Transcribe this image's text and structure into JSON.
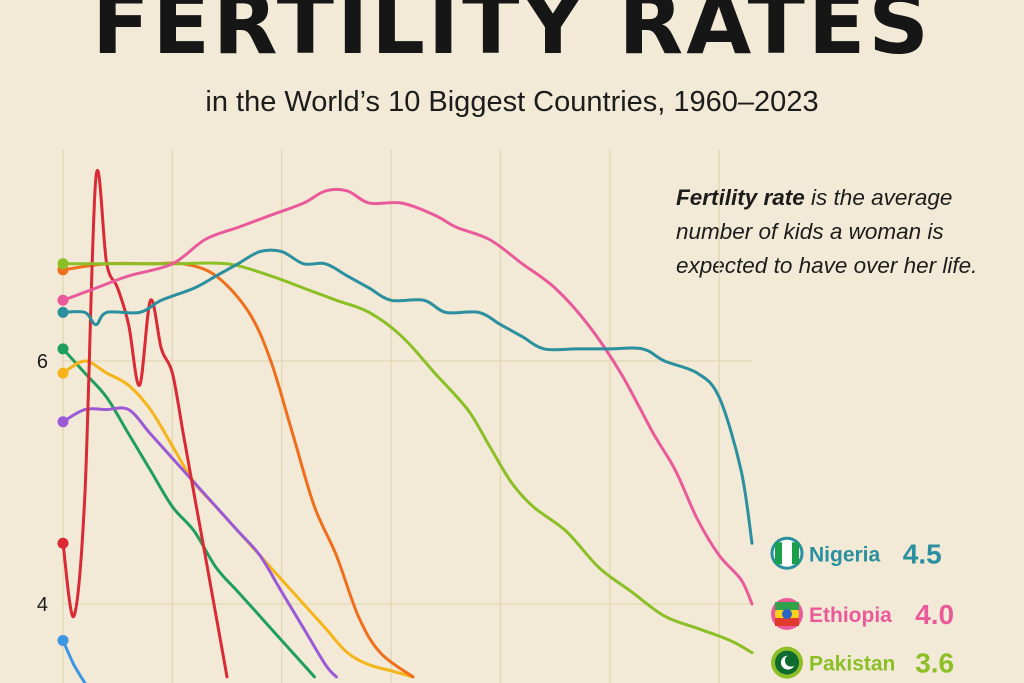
{
  "title": "FERTILITY RATES",
  "subtitle": "in the World’s 10 Biggest Countries, 1960–2023",
  "note": {
    "bold": "Fertility rate",
    "text": " is the average number of kids a woman is expected to have over her life."
  },
  "chart_data": {
    "type": "line",
    "x_range": [
      1960,
      2023
    ],
    "ylim": [
      3.4,
      7.8
    ],
    "y_ticks": [
      {
        "value": 6,
        "label": "6"
      },
      {
        "value": 4,
        "label": "4"
      }
    ],
    "grid": true,
    "series": [
      {
        "color": "#2a8f9e",
        "end_label": "Nigeria",
        "end_value": "4.5",
        "points": [
          [
            1960,
            6.4
          ],
          [
            1962,
            6.4
          ],
          [
            1963,
            6.3
          ],
          [
            1964,
            6.4
          ],
          [
            1967,
            6.4
          ],
          [
            1969,
            6.5
          ],
          [
            1972,
            6.6
          ],
          [
            1974,
            6.7
          ],
          [
            1976,
            6.8
          ],
          [
            1978,
            6.9
          ],
          [
            1980,
            6.9
          ],
          [
            1982,
            6.8
          ],
          [
            1984,
            6.8
          ],
          [
            1986,
            6.7
          ],
          [
            1988,
            6.6
          ],
          [
            1990,
            6.5
          ],
          [
            1993,
            6.5
          ],
          [
            1995,
            6.4
          ],
          [
            1998,
            6.4
          ],
          [
            2000,
            6.3
          ],
          [
            2002,
            6.2
          ],
          [
            2004,
            6.1
          ],
          [
            2007,
            6.1
          ],
          [
            2010,
            6.1
          ],
          [
            2013,
            6.1
          ],
          [
            2015,
            6.0
          ],
          [
            2018,
            5.9
          ],
          [
            2020,
            5.7
          ],
          [
            2022,
            5.1
          ],
          [
            2023,
            4.5
          ]
        ]
      },
      {
        "color": "#ea5a9b",
        "end_label": "Ethiopia",
        "end_value": "4.0",
        "points": [
          [
            1960,
            6.5
          ],
          [
            1963,
            6.6
          ],
          [
            1966,
            6.7
          ],
          [
            1970,
            6.8
          ],
          [
            1973,
            7.0
          ],
          [
            1976,
            7.1
          ],
          [
            1979,
            7.2
          ],
          [
            1982,
            7.3
          ],
          [
            1984,
            7.4
          ],
          [
            1986,
            7.4
          ],
          [
            1988,
            7.3
          ],
          [
            1991,
            7.3
          ],
          [
            1994,
            7.2
          ],
          [
            1996,
            7.1
          ],
          [
            1999,
            7.0
          ],
          [
            2002,
            6.8
          ],
          [
            2005,
            6.6
          ],
          [
            2008,
            6.3
          ],
          [
            2011,
            5.9
          ],
          [
            2014,
            5.4
          ],
          [
            2016,
            5.1
          ],
          [
            2018,
            4.7
          ],
          [
            2020,
            4.4
          ],
          [
            2022,
            4.2
          ],
          [
            2023,
            4.0
          ]
        ]
      },
      {
        "color": "#8cbf26",
        "end_label": "Pakistan",
        "end_value": "3.6",
        "points": [
          [
            1960,
            6.8
          ],
          [
            1965,
            6.8
          ],
          [
            1970,
            6.8
          ],
          [
            1975,
            6.8
          ],
          [
            1979,
            6.7
          ],
          [
            1982,
            6.6
          ],
          [
            1985,
            6.5
          ],
          [
            1988,
            6.4
          ],
          [
            1991,
            6.2
          ],
          [
            1994,
            5.9
          ],
          [
            1997,
            5.6
          ],
          [
            1999,
            5.3
          ],
          [
            2001,
            5.0
          ],
          [
            2003,
            4.8
          ],
          [
            2006,
            4.6
          ],
          [
            2009,
            4.3
          ],
          [
            2012,
            4.1
          ],
          [
            2015,
            3.9
          ],
          [
            2018,
            3.8
          ],
          [
            2021,
            3.7
          ],
          [
            2023,
            3.6
          ]
        ]
      },
      {
        "color": "#f06f1c",
        "points": [
          [
            1960,
            6.75
          ],
          [
            1964,
            6.8
          ],
          [
            1968,
            6.8
          ],
          [
            1971,
            6.8
          ],
          [
            1974,
            6.7
          ],
          [
            1977,
            6.4
          ],
          [
            1979,
            6.0
          ],
          [
            1981,
            5.4
          ],
          [
            1983,
            4.8
          ],
          [
            1985,
            4.4
          ],
          [
            1987,
            3.9
          ],
          [
            1989,
            3.6
          ],
          [
            1992,
            3.4
          ]
        ]
      },
      {
        "color": "#d92a35",
        "points": [
          [
            1960,
            4.5
          ],
          [
            1961,
            3.9
          ],
          [
            1962,
            4.9
          ],
          [
            1963,
            7.5
          ],
          [
            1964,
            6.8
          ],
          [
            1965,
            6.6
          ],
          [
            1966,
            6.3
          ],
          [
            1967,
            5.8
          ],
          [
            1968,
            6.5
          ],
          [
            1969,
            6.1
          ],
          [
            1970,
            5.9
          ],
          [
            1971,
            5.4
          ],
          [
            1972,
            4.9
          ],
          [
            1973,
            4.4
          ],
          [
            1974,
            3.9
          ],
          [
            1975,
            3.4
          ]
        ]
      },
      {
        "color": "#1f9e5e",
        "points": [
          [
            1960,
            6.1
          ],
          [
            1962,
            5.9
          ],
          [
            1964,
            5.7
          ],
          [
            1966,
            5.4
          ],
          [
            1968,
            5.1
          ],
          [
            1970,
            4.8
          ],
          [
            1972,
            4.6
          ],
          [
            1974,
            4.3
          ],
          [
            1976,
            4.1
          ],
          [
            1978,
            3.9
          ],
          [
            1980,
            3.7
          ],
          [
            1982,
            3.5
          ],
          [
            1983,
            3.4
          ]
        ]
      },
      {
        "color": "#f4b41a",
        "points": [
          [
            1960,
            5.9
          ],
          [
            1962,
            6.0
          ],
          [
            1964,
            5.9
          ],
          [
            1966,
            5.8
          ],
          [
            1968,
            5.6
          ],
          [
            1970,
            5.3
          ],
          [
            1972,
            5.0
          ],
          [
            1974,
            4.8
          ],
          [
            1976,
            4.6
          ],
          [
            1978,
            4.4
          ],
          [
            1980,
            4.2
          ],
          [
            1982,
            4.0
          ],
          [
            1984,
            3.8
          ],
          [
            1986,
            3.6
          ],
          [
            1988,
            3.5
          ],
          [
            1990,
            3.45
          ],
          [
            1992,
            3.4
          ]
        ]
      },
      {
        "color": "#9b59d6",
        "points": [
          [
            1960,
            5.5
          ],
          [
            1962,
            5.6
          ],
          [
            1964,
            5.6
          ],
          [
            1966,
            5.6
          ],
          [
            1968,
            5.4
          ],
          [
            1970,
            5.2
          ],
          [
            1972,
            5.0
          ],
          [
            1974,
            4.8
          ],
          [
            1976,
            4.6
          ],
          [
            1978,
            4.4
          ],
          [
            1980,
            4.1
          ],
          [
            1982,
            3.8
          ],
          [
            1984,
            3.5
          ],
          [
            1985,
            3.4
          ]
        ]
      },
      {
        "color": "#3d95e4",
        "points": [
          [
            1960,
            3.7
          ],
          [
            1961,
            3.5
          ],
          [
            1962,
            3.35
          ]
        ]
      }
    ]
  },
  "icons": {
    "fetus": "fetus-silhouette-icon",
    "flags": [
      "nigeria-flag-icon",
      "ethiopia-flag-icon",
      "pakistan-flag-icon"
    ]
  }
}
